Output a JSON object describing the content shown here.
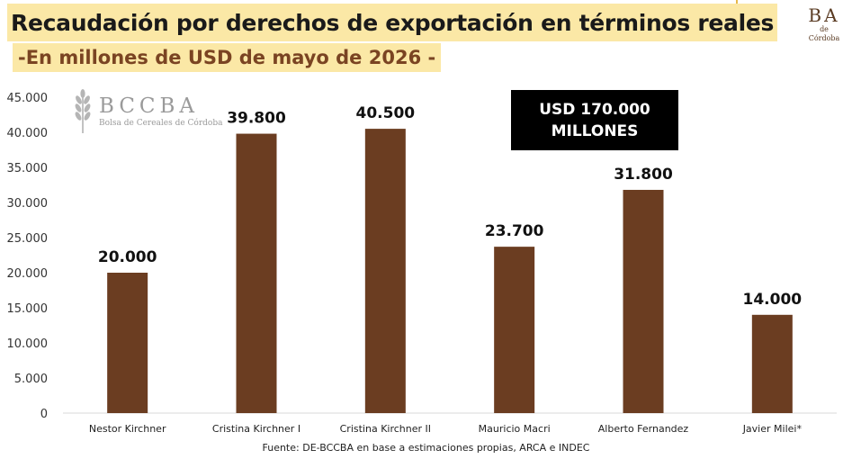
{
  "header": {
    "title": "Recaudación por derechos de exportación en términos reales",
    "subtitle": "-En millones de USD de mayo de 2026 -"
  },
  "corner_logo": {
    "letters": "BA",
    "sub": "de Córdoba"
  },
  "watermark": {
    "name": "BCCBA",
    "full": "Bolsa de Cereales de Córdoba"
  },
  "total_box": {
    "line1": "USD 170.000",
    "line2": "MILLONES"
  },
  "footer": {
    "source": "Fuente: DE-BCCBA en base a estimaciones propias, ARCA e INDEC"
  },
  "colors": {
    "bar": "#6b3d21",
    "title_highlight": "#fbe8a6",
    "subtitle_text": "#7a4422"
  },
  "chart_data": {
    "type": "bar",
    "categories": [
      "Nestor Kirchner",
      "Cristina Kirchner I",
      "Cristina Kirchner II",
      "Mauricio Macri",
      "Alberto Fernandez",
      "Javier Milei*"
    ],
    "values": [
      20000,
      39800,
      40500,
      23700,
      31800,
      14000
    ],
    "value_labels": [
      "20.000",
      "39.800",
      "40.500",
      "23.700",
      "31.800",
      "14.000"
    ],
    "ylim": [
      0,
      45000
    ],
    "yticks": [
      0,
      5000,
      10000,
      15000,
      20000,
      25000,
      30000,
      35000,
      40000,
      45000
    ],
    "ytick_labels": [
      "0",
      "5.000",
      "10.000",
      "15.000",
      "20.000",
      "25.000",
      "30.000",
      "35.000",
      "40.000",
      "45.000"
    ],
    "grid": false,
    "legend": "none"
  }
}
